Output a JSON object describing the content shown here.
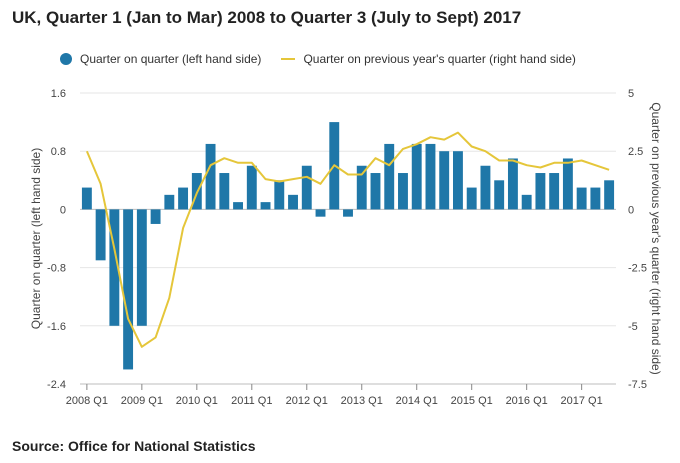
{
  "title": "UK, Quarter 1 (Jan to Mar) 2008 to Quarter 3 (July to Sept) 2017",
  "source": "Source: Office for National Statistics",
  "colors": {
    "bar": "#1f77a8",
    "line": "#e5c63a",
    "grid": "#e6e6e6",
    "zero": "#bdbdbd"
  },
  "chart_data": {
    "type": "bar+line",
    "xlabel": "",
    "ylabel_left": "Quarter on quarter (left hand side)",
    "ylabel_right": "Quarter on previous year's quarter (right hand side)",
    "ylim_left": [
      -2.4,
      1.6
    ],
    "ylim_right": [
      -7.5,
      5
    ],
    "yticks_left": [
      "1.6",
      "0.8",
      "0",
      "-0.8",
      "-1.6",
      "-2.4"
    ],
    "yticks_right": [
      "5",
      "2.5",
      "0",
      "-2.5",
      "-5",
      "-7.5"
    ],
    "xtick_labels": [
      "2008 Q1",
      "2009 Q1",
      "2010 Q1",
      "2011 Q1",
      "2012 Q1",
      "2013 Q1",
      "2014 Q1",
      "2015 Q1",
      "2016 Q1",
      "2017 Q1"
    ],
    "grid": true,
    "legend_position": "top",
    "series": [
      {
        "name": "Quarter on quarter (left hand side)",
        "type": "bar",
        "axis": "left",
        "values": [
          0.3,
          -0.7,
          -1.6,
          -2.2,
          -1.6,
          -0.2,
          0.2,
          0.3,
          0.5,
          0.9,
          0.5,
          0.1,
          0.6,
          0.1,
          0.4,
          0.2,
          0.6,
          -0.1,
          1.2,
          -0.1,
          0.6,
          0.5,
          0.9,
          0.5,
          0.9,
          0.9,
          0.8,
          0.8,
          0.3,
          0.6,
          0.4,
          0.7,
          0.2,
          0.5,
          0.5,
          0.7,
          0.3,
          0.3,
          0.4
        ]
      },
      {
        "name": "Quarter on previous year's quarter (right hand side)",
        "type": "line",
        "axis": "right",
        "values": [
          2.5,
          1.1,
          -1.7,
          -4.7,
          -5.9,
          -5.5,
          -3.8,
          -0.8,
          0.7,
          1.9,
          2.2,
          2.0,
          2.0,
          1.3,
          1.2,
          1.3,
          1.4,
          1.1,
          1.9,
          1.5,
          1.5,
          2.2,
          1.9,
          2.6,
          2.8,
          3.1,
          3.0,
          3.3,
          2.7,
          2.5,
          2.1,
          2.1,
          1.9,
          1.8,
          2.0,
          2.0,
          2.1,
          1.9,
          1.7
        ]
      }
    ]
  }
}
